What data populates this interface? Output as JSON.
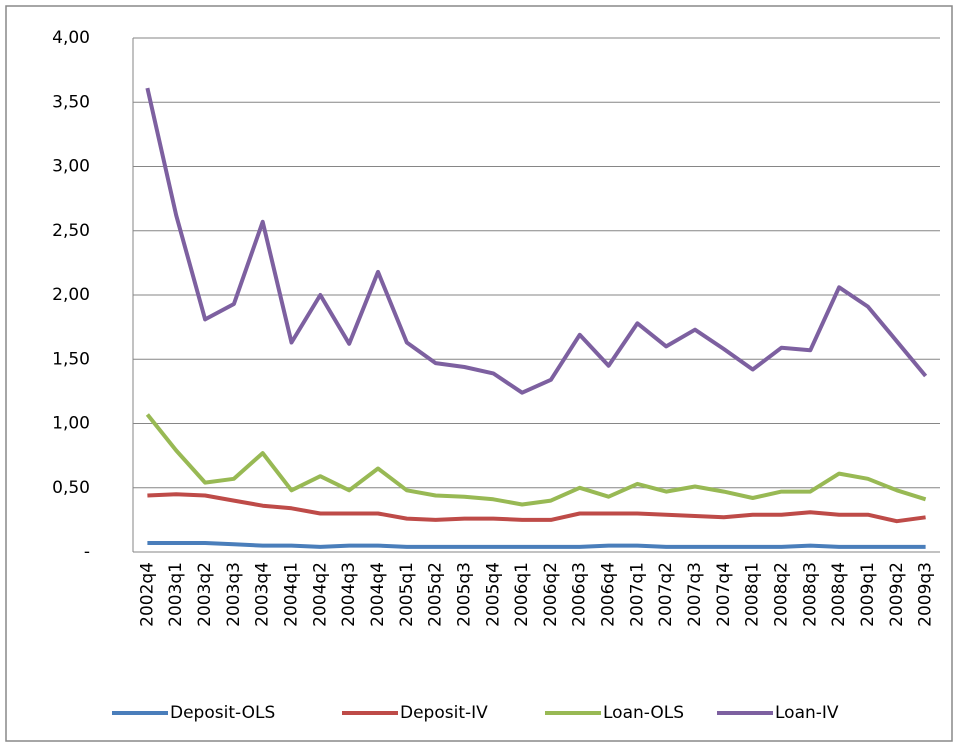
{
  "chart_data": {
    "type": "line",
    "categories": [
      "2002q4",
      "2003q1",
      "2003q2",
      "2003q3",
      "2003q4",
      "2004q1",
      "2004q2",
      "2004q3",
      "2004q4",
      "2005q1",
      "2005q2",
      "2005q3",
      "2005q4",
      "2006q1",
      "2006q2",
      "2006q3",
      "2006q4",
      "2007q1",
      "2007q2",
      "2007q3",
      "2007q4",
      "2008q1",
      "2008q2",
      "2008q3",
      "2008q4",
      "2009q1",
      "2009q2",
      "2009q3"
    ],
    "series": [
      {
        "name": "Deposit-OLS",
        "color": "#4a7ebb",
        "values": [
          0.07,
          0.07,
          0.07,
          0.06,
          0.05,
          0.05,
          0.04,
          0.05,
          0.05,
          0.04,
          0.04,
          0.04,
          0.04,
          0.04,
          0.04,
          0.04,
          0.05,
          0.05,
          0.04,
          0.04,
          0.04,
          0.04,
          0.04,
          0.05,
          0.04,
          0.04,
          0.04,
          0.04
        ]
      },
      {
        "name": "Deposit-IV",
        "color": "#be4b48",
        "values": [
          0.44,
          0.45,
          0.44,
          0.4,
          0.36,
          0.34,
          0.3,
          0.3,
          0.3,
          0.26,
          0.25,
          0.26,
          0.26,
          0.25,
          0.25,
          0.3,
          0.3,
          0.3,
          0.29,
          0.28,
          0.27,
          0.29,
          0.29,
          0.31,
          0.29,
          0.29,
          0.24,
          0.27
        ]
      },
      {
        "name": "Loan-OLS",
        "color": "#98b954",
        "values": [
          1.07,
          0.79,
          0.54,
          0.57,
          0.77,
          0.48,
          0.59,
          0.48,
          0.65,
          0.48,
          0.44,
          0.43,
          0.41,
          0.37,
          0.4,
          0.5,
          0.43,
          0.53,
          0.47,
          0.51,
          0.47,
          0.42,
          0.47,
          0.47,
          0.61,
          0.57,
          0.48,
          0.41
        ]
      },
      {
        "name": "Loan-IV",
        "color": "#7d60a0",
        "values": [
          3.61,
          2.62,
          1.81,
          1.93,
          2.57,
          1.63,
          2.0,
          1.62,
          2.18,
          1.63,
          1.47,
          1.44,
          1.39,
          1.24,
          1.34,
          1.69,
          1.45,
          1.78,
          1.6,
          1.73,
          1.58,
          1.42,
          1.59,
          1.57,
          2.06,
          1.91,
          1.64,
          1.37
        ]
      }
    ],
    "ylim": [
      0,
      4
    ],
    "yticks": [
      {
        "value": 0,
        "label": "-"
      },
      {
        "value": 0.5,
        "label": "0,50"
      },
      {
        "value": 1,
        "label": "1,00"
      },
      {
        "value": 1.5,
        "label": "1,50"
      },
      {
        "value": 2,
        "label": "2,00"
      },
      {
        "value": 2.5,
        "label": "2,50"
      },
      {
        "value": 3,
        "label": "3,00"
      },
      {
        "value": 3.5,
        "label": "3,50"
      },
      {
        "value": 4,
        "label": "4,00"
      }
    ],
    "grid": true,
    "legend": "bottom"
  }
}
